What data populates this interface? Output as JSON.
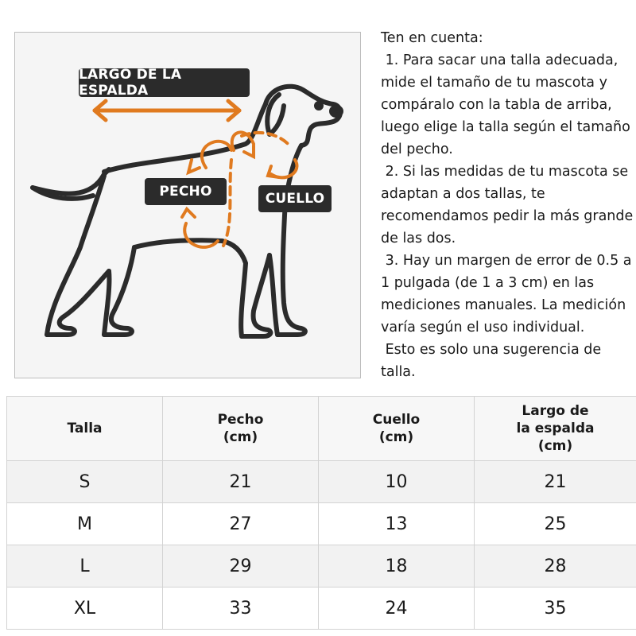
{
  "diagram": {
    "labels": {
      "back_length": "LARGO DE LA ESPALDA",
      "chest": "PECHO",
      "neck": "CUELLO"
    },
    "colors": {
      "accent": "#e07a1f",
      "outline": "#2b2b2b",
      "label_bg": "#2b2b2b",
      "box_bg": "#f5f5f5"
    },
    "icons": [
      "dog-outline",
      "double-arrow",
      "curved-arrow"
    ]
  },
  "notes": {
    "heading": "Ten en cuenta:",
    "point1": " 1. Para sacar una talla adecuada, mide el tamaño de tu mascota y compáralo con la tabla de arriba, luego elige la talla según el tamaño del pecho.",
    "point2": " 2. Si las medidas de tu mascota se adaptan a dos tallas, te recomendamos pedir la más grande de las dos.",
    "point3": " 3. Hay un margen de error de 0.5 a 1 pulgada (de 1 a 3 cm) en las mediciones manuales. La medición varía según el uso individual.",
    "footer": " Esto es solo una sugerencia de talla."
  },
  "table": {
    "headers": {
      "size": "Talla",
      "chest_1": "Pecho",
      "chest_2": "(cm)",
      "neck_1": "Cuello",
      "neck_2": "(cm)",
      "back_1": "Largo de",
      "back_2": "la espalda",
      "back_3": "(cm)"
    },
    "rows": [
      {
        "size": "S",
        "chest": "21",
        "neck": "10",
        "back": "21"
      },
      {
        "size": "M",
        "chest": "27",
        "neck": "13",
        "back": "25"
      },
      {
        "size": "L",
        "chest": "29",
        "neck": "18",
        "back": "28"
      },
      {
        "size": "XL",
        "chest": "33",
        "neck": "24",
        "back": "35"
      }
    ]
  }
}
